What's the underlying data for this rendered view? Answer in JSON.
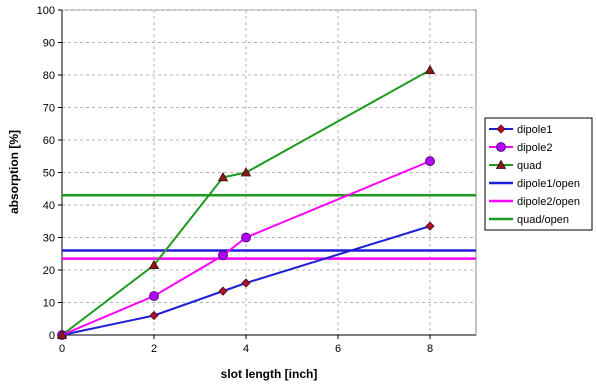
{
  "chart_data": {
    "type": "line",
    "xlabel": "slot length [inch]",
    "ylabel": "absorption [%]",
    "xlim": [
      0,
      9
    ],
    "ylim": [
      0,
      100
    ],
    "xticks": [
      "0",
      "2",
      "4",
      "6",
      "8"
    ],
    "yticks": [
      "0",
      "10",
      "20",
      "30",
      "40",
      "50",
      "60",
      "70",
      "80",
      "90",
      "100"
    ],
    "grid": true,
    "legend_position": "right",
    "series": [
      {
        "name": "dipole1",
        "kind": "line",
        "marker": "diamond",
        "color": "#1f1fd6",
        "marker_color": "#b0102a",
        "x": [
          0,
          2,
          3.5,
          4,
          8
        ],
        "y": [
          0,
          6,
          13.5,
          16,
          33.5
        ]
      },
      {
        "name": "dipole2",
        "kind": "line",
        "marker": "circle",
        "color": "#ff00ff",
        "marker_color": "#b400ff",
        "x": [
          0,
          2,
          3.5,
          4,
          8
        ],
        "y": [
          0,
          12,
          24.5,
          30,
          53.5
        ]
      },
      {
        "name": "quad",
        "kind": "line",
        "marker": "triangle",
        "color": "#1f9a1f",
        "marker_color": "#8a1a1a",
        "x": [
          0,
          2,
          3.5,
          4,
          8
        ],
        "y": [
          0,
          21.5,
          48.5,
          50,
          81.5
        ]
      },
      {
        "name": "dipole1/open",
        "kind": "hline",
        "color": "#1f1fd6",
        "y": 26
      },
      {
        "name": "dipole2/open",
        "kind": "hline",
        "color": "#ff00ff",
        "y": 23.5
      },
      {
        "name": "quad/open",
        "kind": "hline",
        "color": "#1f9a1f",
        "y": 43
      }
    ]
  }
}
